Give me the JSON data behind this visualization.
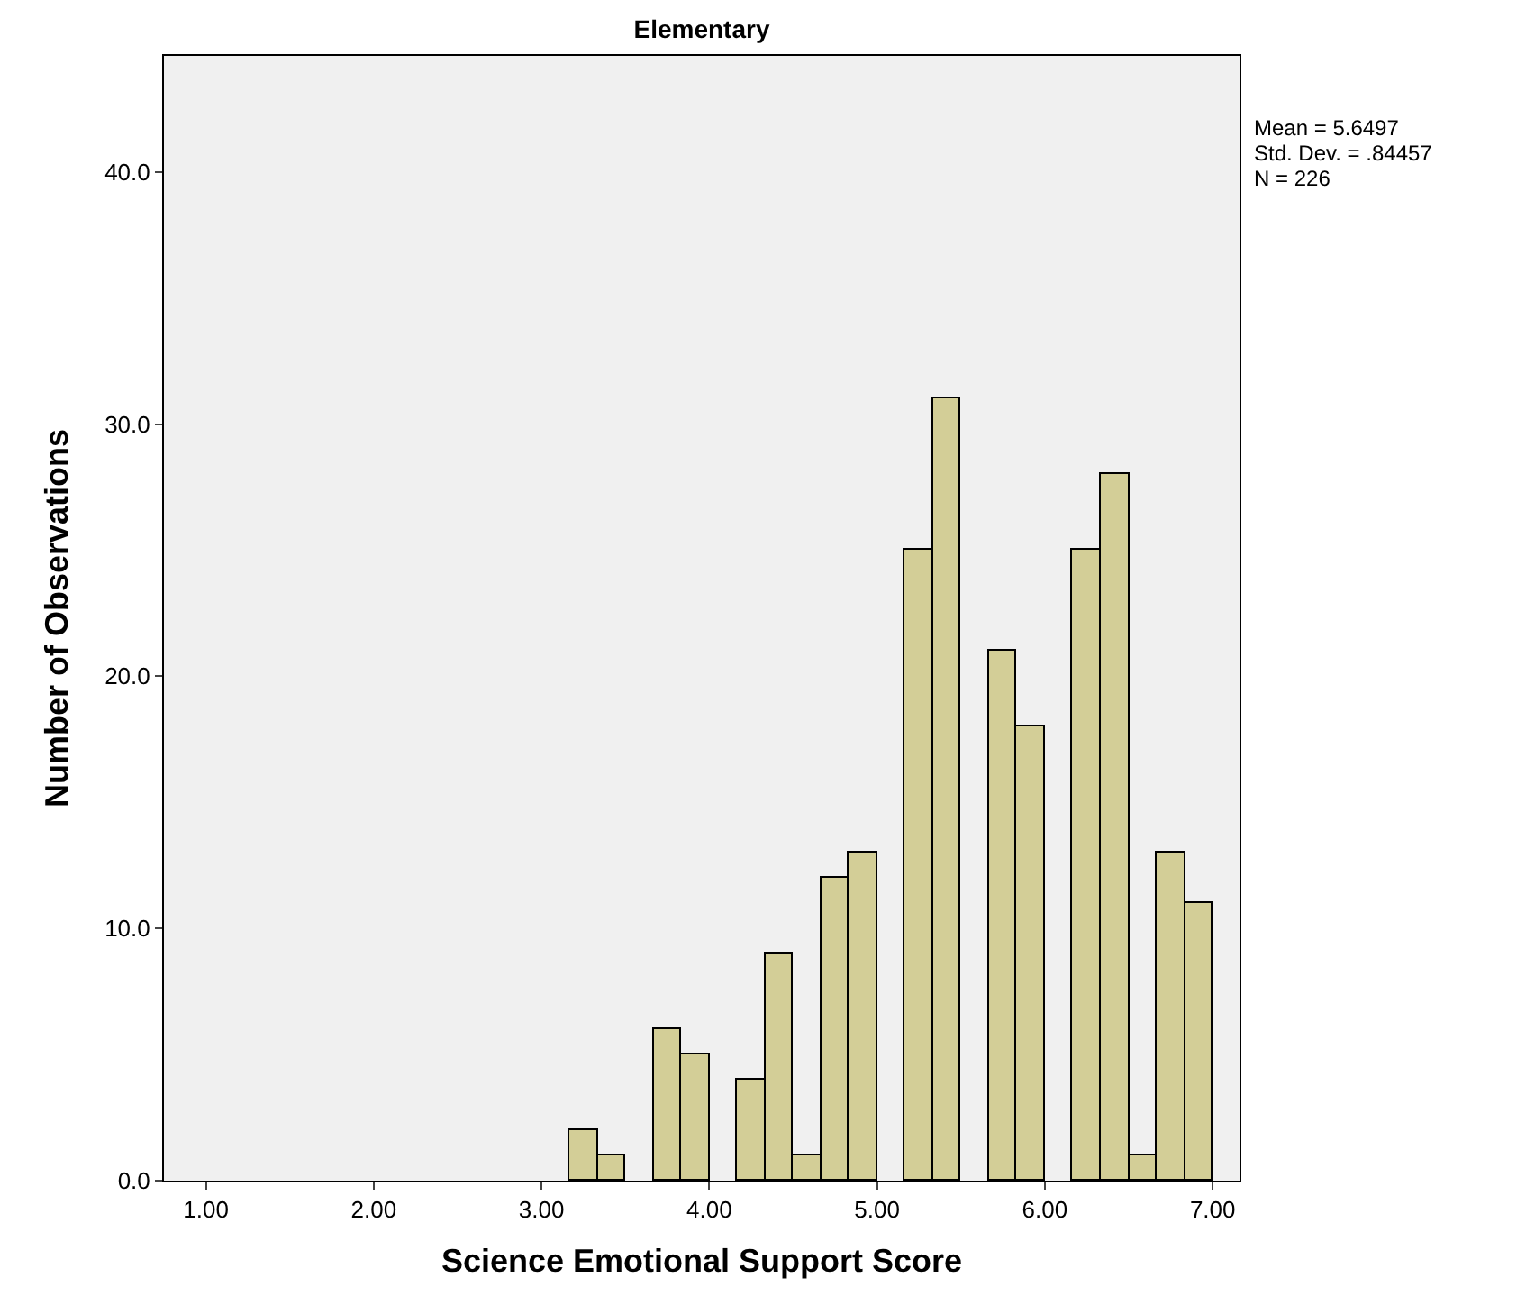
{
  "chart_data": {
    "type": "histogram",
    "title": "Elementary",
    "xlabel": "Science Emotional Support Score",
    "ylabel": "Number of Observations",
    "bins": [
      3.1667,
      3.3333,
      3.5,
      3.6667,
      3.8333,
      4.0,
      4.1667,
      4.3333,
      4.5,
      4.6667,
      4.8333,
      5.0,
      5.1667,
      5.3333,
      5.5,
      5.6667,
      5.8333,
      6.0,
      6.1667,
      6.3333,
      6.5,
      6.6667,
      6.8333,
      7.0
    ],
    "values": [
      2,
      1,
      0,
      6,
      5,
      0,
      4,
      9,
      1,
      12,
      13,
      0,
      25,
      31,
      0,
      21,
      18,
      0,
      25,
      28,
      1,
      13,
      11
    ],
    "color": "#d3ce97",
    "xlim": [
      0.75,
      7.16
    ],
    "ylim": [
      0,
      44.6
    ],
    "xticks": [
      {
        "value": 1,
        "label": "1.00"
      },
      {
        "value": 2,
        "label": "2.00"
      },
      {
        "value": 3,
        "label": "3.00"
      },
      {
        "value": 4,
        "label": "4.00"
      },
      {
        "value": 5,
        "label": "5.00"
      },
      {
        "value": 6,
        "label": "6.00"
      },
      {
        "value": 7,
        "label": "7.00"
      }
    ],
    "yticks": [
      {
        "value": 0,
        "label": "0.0"
      },
      {
        "value": 10,
        "label": "10.0"
      },
      {
        "value": 20,
        "label": "20.0"
      },
      {
        "value": 30,
        "label": "30.0"
      },
      {
        "value": 40,
        "label": "40.0"
      }
    ],
    "annotations": [
      "Mean = 5.6497",
      "Std. Dev. = .84457",
      "N = 226"
    ]
  }
}
